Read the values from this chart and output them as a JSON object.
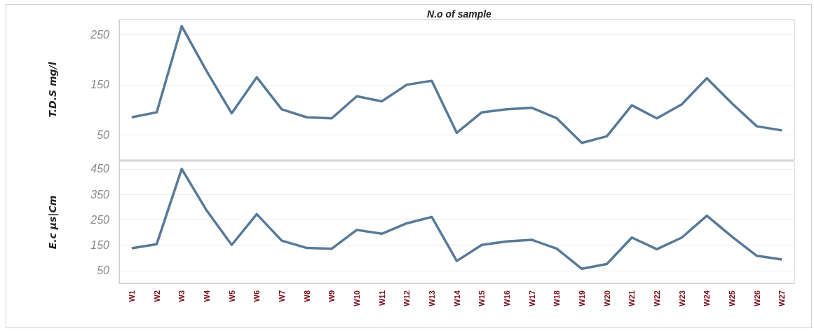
{
  "chart_data": [
    {
      "type": "line",
      "title": "N.o of sample",
      "ylabel": "T.D.S mg/l",
      "categories": [
        null,
        null,
        null,
        null,
        null,
        null,
        null,
        null,
        null,
        null,
        null,
        null,
        null,
        null,
        null,
        null,
        null,
        null,
        null,
        null,
        null,
        null,
        null,
        null,
        null,
        null,
        null
      ],
      "series": [
        {
          "color": "#587a99",
          "values": [
            85,
            95,
            267,
            177,
            93,
            165,
            101,
            85,
            83,
            127,
            117,
            150,
            158,
            54,
            95,
            101,
            104,
            83,
            34,
            47,
            109,
            83,
            111,
            163,
            113,
            67,
            59
          ]
        }
      ],
      "ylim": [
        0,
        280
      ],
      "yticks": [
        50,
        150,
        250
      ],
      "grid": "y",
      "tick_labels": "y",
      "marker": "none",
      "line_style": "solid"
    },
    {
      "type": "line",
      "ylabel": "E.c µs|Cm",
      "categories": [
        "W1",
        "W2",
        "W3",
        "W4",
        "W5",
        "W6",
        "W7",
        "W8",
        "W9",
        "W10",
        "W11",
        "W12",
        "W13",
        "W14",
        "W15",
        "W16",
        "W17",
        "W18",
        "W19",
        "W20",
        "W21",
        "W22",
        "W23",
        "W24",
        "W25",
        "W26",
        "W27"
      ],
      "series": [
        {
          "color": "#587a99",
          "values": [
            138,
            154,
            450,
            286,
            151,
            272,
            168,
            139,
            136,
            210,
            195,
            236,
            261,
            88,
            151,
            165,
            171,
            136,
            57,
            76,
            180,
            134,
            180,
            266,
            184,
            108,
            94
          ]
        }
      ],
      "ylim": [
        0,
        480
      ],
      "yticks": [
        50,
        150,
        250,
        350,
        450
      ],
      "grid": "y",
      "marker": "none",
      "line_style": "solid"
    }
  ]
}
